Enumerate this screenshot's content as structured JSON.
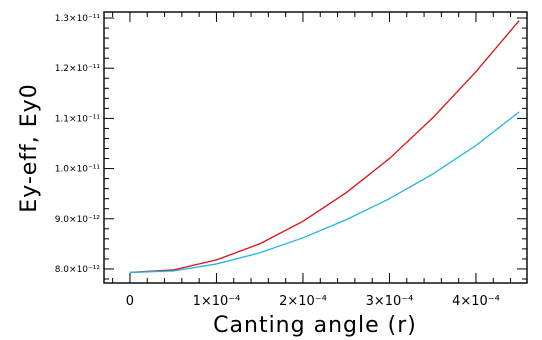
{
  "chart_data": {
    "type": "line",
    "title": "",
    "xlabel": "Canting angle (r)",
    "ylabel": "Ey-eff, Ey0",
    "xlim": [
      -3e-05,
      0.000459
    ],
    "ylim": [
      7.72e-12,
      1.312e-11
    ],
    "x_tick_labels": [
      {
        "value": 0,
        "label": "0"
      },
      {
        "value": 0.0001,
        "label": "1×10⁻⁴"
      },
      {
        "value": 0.0002,
        "label": "2×10⁻⁴"
      },
      {
        "value": 0.0003,
        "label": "3×10⁻⁴"
      },
      {
        "value": 0.0004,
        "label": "4×10⁻⁴"
      }
    ],
    "y_tick_labels": [
      {
        "value": 8e-12,
        "label": "8.0×10⁻¹²"
      },
      {
        "value": 9e-12,
        "label": "9.0×10⁻¹²"
      },
      {
        "value": 1e-11,
        "label": "1.0×10⁻¹¹"
      },
      {
        "value": 1.1e-11,
        "label": "1.1×10⁻¹¹"
      },
      {
        "value": 1.2e-11,
        "label": "1.2×10⁻¹¹"
      },
      {
        "value": 1.3e-11,
        "label": "1.3×10⁻¹¹"
      }
    ],
    "x": [
      0,
      5e-05,
      0.0001,
      0.00015,
      0.0002,
      0.00025,
      0.0003,
      0.00035,
      0.0004,
      0.00045
    ],
    "series": [
      {
        "color": "#dd1111",
        "values": [
          7.93e-12,
          7.98e-12,
          8.18e-12,
          8.5e-12,
          8.95e-12,
          9.52e-12,
          1.02e-11,
          1.101e-11,
          1.193e-11,
          1.295e-11
        ]
      },
      {
        "color": "#22b4e0",
        "values": [
          7.93e-12,
          7.96e-12,
          8.1e-12,
          8.32e-12,
          8.62e-12,
          8.98e-12,
          9.4e-12,
          9.89e-12,
          1.046e-11,
          1.113e-11
        ]
      }
    ],
    "grid": false,
    "minor_ticks": true
  }
}
